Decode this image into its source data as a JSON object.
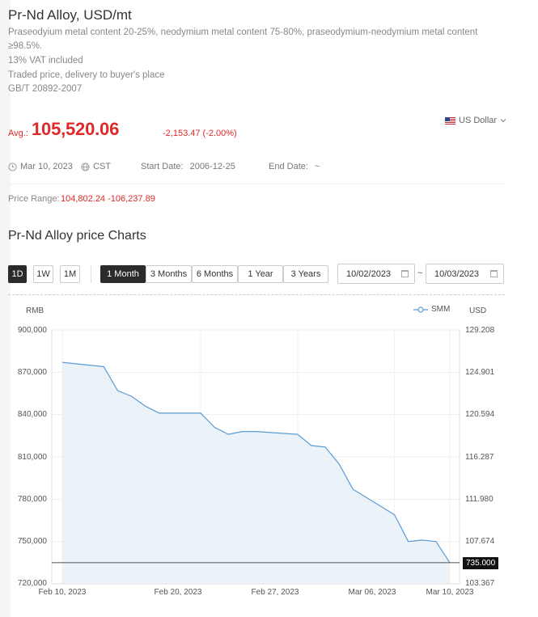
{
  "product": {
    "title": "Pr-Nd Alloy, USD/mt",
    "desc_lines": [
      "Praseodyium metal content 20-25%, neodymium metal content 75-80%, praseodymium-neodymium metal content",
      "≥98.5%.",
      "13% VAT included",
      "Traded price, delivery to buyer's place",
      "GB/T 20892-2007"
    ]
  },
  "price": {
    "avg_label": "Avg.:",
    "avg_value": "105,520.06",
    "change": "-2,153.47 (-2.00%)",
    "currency": "US Dollar",
    "up_color": "#e02828"
  },
  "meta": {
    "date": "Mar 10, 2023",
    "timezone": "CST",
    "start_label": "Start Date:",
    "start_value": "2006-12-25",
    "end_label": "End Date:",
    "end_value": "~"
  },
  "range": {
    "label": "Price Range:",
    "value": "104,802.24 -106,237.89"
  },
  "charts": {
    "title": "Pr-Nd Alloy price Charts",
    "interval_buttons": [
      "1D",
      "1W",
      "1M"
    ],
    "period_buttons": [
      "1 Month",
      "3 Months",
      "6 Months",
      "1 Year",
      "3 Years"
    ],
    "active_interval": "1D",
    "active_period": "1 Month",
    "date_from": "10/02/2023",
    "date_to": "10/03/2023",
    "date_sep": "~"
  },
  "chart_data": {
    "type": "area",
    "left_axis_label": "RMB",
    "right_axis_label": "USD",
    "legend": "SMM",
    "line_color": "#5b9bd5",
    "ylim": [
      720000,
      900000
    ],
    "yticks_left": [
      "900,000",
      "870,000",
      "840,000",
      "810,000",
      "780,000",
      "750,000",
      "720,000"
    ],
    "yticks_right": [
      "129.208",
      "124.901",
      "120.594",
      "116.287",
      "111.980",
      "107.674",
      "103.367"
    ],
    "xticks": [
      "Feb 10, 2023",
      "Feb 20, 2023",
      "Feb 27, 2023",
      "Mar 06, 2023",
      "Mar 10, 2023"
    ],
    "x": [
      "2023-02-10",
      "2023-02-13",
      "2023-02-14",
      "2023-02-15",
      "2023-02-16",
      "2023-02-17",
      "2023-02-20",
      "2023-02-21",
      "2023-02-22",
      "2023-02-23",
      "2023-02-24",
      "2023-02-27",
      "2023-02-28",
      "2023-03-01",
      "2023-03-02",
      "2023-03-03",
      "2023-03-06",
      "2023-03-07",
      "2023-03-08",
      "2023-03-09",
      "2023-03-10"
    ],
    "values": [
      877000,
      874000,
      857000,
      853000,
      846000,
      841000,
      841000,
      831000,
      826000,
      828000,
      828000,
      826000,
      818000,
      817000,
      805000,
      787000,
      769000,
      750000,
      751000,
      750000,
      735000
    ],
    "reference_line": 735000,
    "reference_label": "735.000"
  }
}
